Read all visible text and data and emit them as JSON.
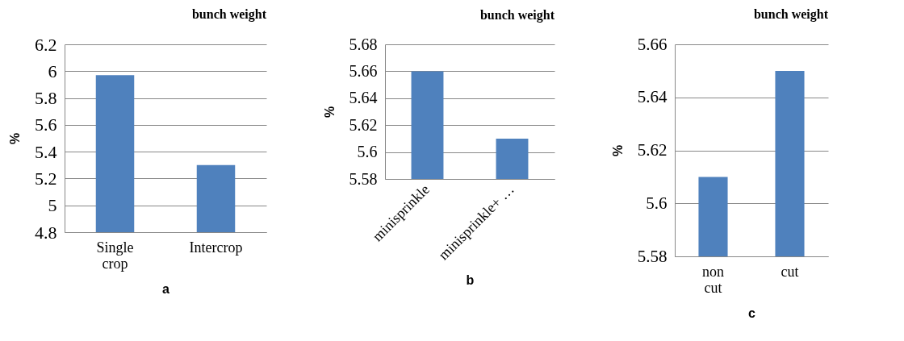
{
  "chart_data": [
    {
      "type": "bar",
      "title": "bunch weight",
      "xlabel": "a",
      "ylabel": "%",
      "categories": [
        "Single crop",
        "Intercrop"
      ],
      "values": [
        5.97,
        5.3
      ],
      "color": "#4f81bd",
      "ylim": [
        4.8,
        6.2
      ],
      "yticks": [
        4.8,
        {
          "value": 5,
          "label": "5"
        },
        5.2,
        5.4,
        5.6,
        5.8,
        {
          "value": 6,
          "label": "6"
        },
        6.2
      ],
      "grid": "y"
    },
    {
      "type": "bar",
      "title": "bunch weight",
      "xlabel": "b",
      "ylabel": "%",
      "categories": [
        "minisprinkle",
        "minisprinkle+ …"
      ],
      "values": [
        5.66,
        5.61
      ],
      "color": "#4f81bd",
      "ylim": [
        5.58,
        5.68
      ],
      "yticks": [
        5.58,
        {
          "value": 5.6,
          "label": "5.6"
        },
        5.62,
        5.64,
        5.66,
        5.68
      ],
      "grid": "y"
    },
    {
      "type": "bar",
      "title": "bunch weight",
      "xlabel": "c",
      "ylabel": "%",
      "categories": [
        "non cut",
        "cut"
      ],
      "values": [
        5.61,
        5.65
      ],
      "color": "#4f81bd",
      "ylim": [
        5.58,
        5.66
      ],
      "yticks": [
        5.58,
        {
          "value": 5.6,
          "label": "5.6"
        },
        5.62,
        5.64,
        5.66
      ],
      "grid": "y"
    }
  ]
}
